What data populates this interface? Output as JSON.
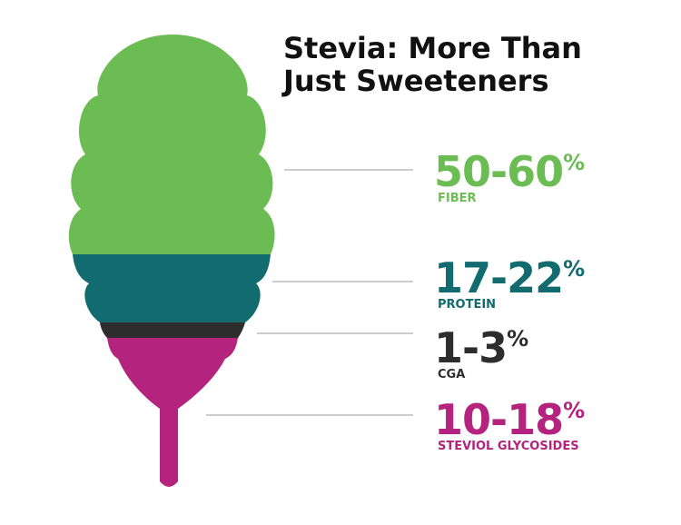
{
  "header": {
    "title_lines": [
      "Stevia: More Than",
      "Just Sweeteners"
    ]
  },
  "items": [
    {
      "value": "50-60",
      "unit": "%",
      "label": "FIBER",
      "color": "#6bbd53"
    },
    {
      "value": "17-22",
      "unit": "%",
      "label": "PROTEIN",
      "color": "#126b6e"
    },
    {
      "value": "1-3",
      "unit": "%",
      "label": "CGA",
      "color": "#2d2d2d"
    },
    {
      "value": "10-18",
      "unit": "%",
      "label": "STEVIOL GLYCOSIDES",
      "color": "#b4237e"
    }
  ]
}
